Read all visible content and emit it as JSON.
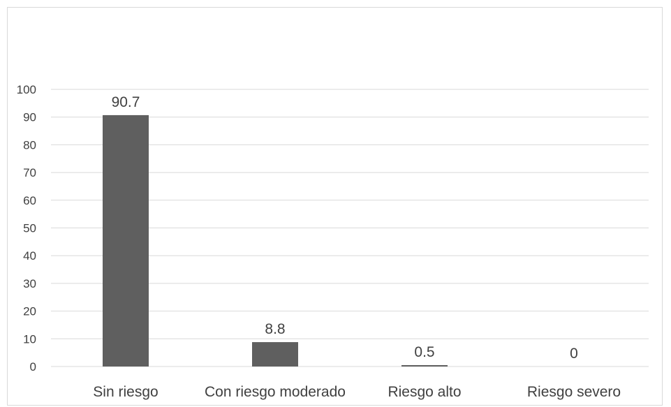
{
  "chart_data": {
    "type": "bar",
    "categories": [
      "Sin riesgo",
      "Con riesgo moderado",
      "Riesgo alto",
      "Riesgo severo"
    ],
    "values": [
      90.7,
      8.8,
      0.5,
      0
    ],
    "data_labels": [
      "90.7",
      "8.8",
      "0.5",
      "0"
    ],
    "title": "",
    "xlabel": "",
    "ylabel": "",
    "ylim": [
      0,
      100
    ],
    "yticks": [
      "0",
      "10",
      "20",
      "30",
      "40",
      "50",
      "60",
      "70",
      "80",
      "90",
      "100"
    ],
    "grid": true,
    "legend": "none",
    "bar_color": "#5f5f5f",
    "grid_color": "#d9d9d9",
    "text_color": "#404040"
  }
}
